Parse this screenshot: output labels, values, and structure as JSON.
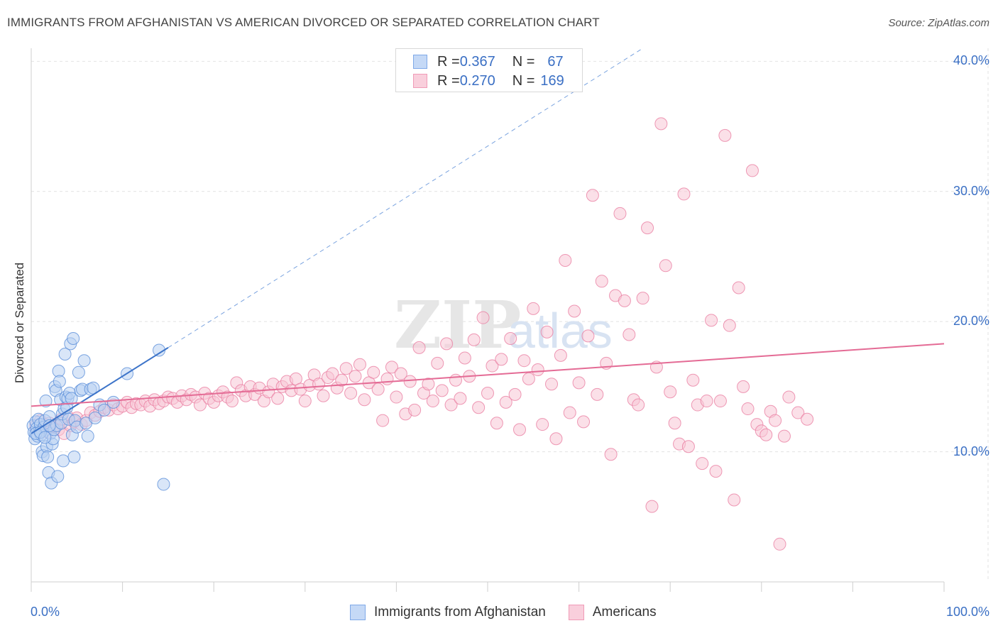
{
  "header": {
    "title": "IMMIGRANTS FROM AFGHANISTAN VS AMERICAN DIVORCED OR SEPARATED CORRELATION CHART",
    "source": "Source: ZipAtlas.com"
  },
  "watermark": "ZIPatlas",
  "legend_top": {
    "rows": [
      {
        "r_label": "R = ",
        "r_value": "0.367",
        "n_label": "N = ",
        "n_value": "67",
        "color": "#7fa9e8",
        "fill": "#c5d9f6"
      },
      {
        "r_label": "R = ",
        "r_value": "0.270",
        "n_label": "N = ",
        "n_value": "169",
        "color": "#f09bb7",
        "fill": "#f9cfdc"
      }
    ]
  },
  "chart_data": {
    "type": "scatter",
    "title": "IMMIGRANTS FROM AFGHANISTAN VS AMERICAN DIVORCED OR SEPARATED CORRELATION CHART",
    "xlabel": "",
    "ylabel": "Divorced or Separated",
    "xlim": [
      0,
      100
    ],
    "ylim": [
      0,
      41
    ],
    "x_tick_labels": [
      "0.0%",
      "100.0%"
    ],
    "y_ticks": [
      10,
      20,
      30,
      40
    ],
    "y_tick_labels": [
      "10.0%",
      "20.0%",
      "30.0%",
      "40.0%"
    ],
    "grid": true,
    "legend_position": "bottom",
    "series": [
      {
        "name": "Immigrants from Afghanistan",
        "color": "#5b8fd9",
        "fill": "#b9d1f3",
        "r": 0.367,
        "n": 67,
        "trend": {
          "x0": 0,
          "y0": 11.4,
          "x1": 15,
          "y1": 18.0,
          "dashed_to_x": 67,
          "dashed_to_y": 41
        },
        "points": [
          [
            0.2,
            12.0
          ],
          [
            0.3,
            11.5
          ],
          [
            0.4,
            11.0
          ],
          [
            0.5,
            12.3
          ],
          [
            0.6,
            11.8
          ],
          [
            0.7,
            11.2
          ],
          [
            0.8,
            12.5
          ],
          [
            0.9,
            11.6
          ],
          [
            1.0,
            12.1
          ],
          [
            1.1,
            11.3
          ],
          [
            1.2,
            10.0
          ],
          [
            1.3,
            9.7
          ],
          [
            1.4,
            11.9
          ],
          [
            1.5,
            12.4
          ],
          [
            1.6,
            13.9
          ],
          [
            1.7,
            10.4
          ],
          [
            1.8,
            9.6
          ],
          [
            1.9,
            8.4
          ],
          [
            2.0,
            12.7
          ],
          [
            2.1,
            11.4
          ],
          [
            2.2,
            7.6
          ],
          [
            2.3,
            10.6
          ],
          [
            2.4,
            11.0
          ],
          [
            2.5,
            11.7
          ],
          [
            2.6,
            15.0
          ],
          [
            2.7,
            14.7
          ],
          [
            2.8,
            12.0
          ],
          [
            2.9,
            8.1
          ],
          [
            3.0,
            16.2
          ],
          [
            3.1,
            15.4
          ],
          [
            3.2,
            14.0
          ],
          [
            3.3,
            12.2
          ],
          [
            3.4,
            12.9
          ],
          [
            3.5,
            9.3
          ],
          [
            3.6,
            13.3
          ],
          [
            3.7,
            17.5
          ],
          [
            3.8,
            14.2
          ],
          [
            3.9,
            13.4
          ],
          [
            4.0,
            14.1
          ],
          [
            4.1,
            12.5
          ],
          [
            4.2,
            14.5
          ],
          [
            4.3,
            18.3
          ],
          [
            4.4,
            14.1
          ],
          [
            4.5,
            11.3
          ],
          [
            4.6,
            18.7
          ],
          [
            4.7,
            9.6
          ],
          [
            4.8,
            12.4
          ],
          [
            5.0,
            11.9
          ],
          [
            5.2,
            16.1
          ],
          [
            5.4,
            14.7
          ],
          [
            5.6,
            14.8
          ],
          [
            5.8,
            17.0
          ],
          [
            6.0,
            12.2
          ],
          [
            6.2,
            11.2
          ],
          [
            6.5,
            14.8
          ],
          [
            6.8,
            14.9
          ],
          [
            7.0,
            12.6
          ],
          [
            7.5,
            13.6
          ],
          [
            8.0,
            13.2
          ],
          [
            9.0,
            13.8
          ],
          [
            10.5,
            16.0
          ],
          [
            14.0,
            17.8
          ],
          [
            14.5,
            7.5
          ],
          [
            0.5,
            11.4
          ],
          [
            1.0,
            11.5
          ],
          [
            1.5,
            11.1
          ],
          [
            2.0,
            12.0
          ]
        ]
      },
      {
        "name": "Americans",
        "color": "#ea7fa3",
        "fill": "#f7c6d6",
        "r": 0.27,
        "n": 169,
        "trend": {
          "x0": 0,
          "y0": 13.5,
          "x1": 100,
          "y1": 18.3
        },
        "points": [
          [
            0.5,
            12.0
          ],
          [
            0.8,
            11.6
          ],
          [
            1.0,
            12.4
          ],
          [
            1.2,
            11.8
          ],
          [
            1.5,
            12.1
          ],
          [
            1.8,
            11.5
          ],
          [
            2.0,
            12.2
          ],
          [
            2.3,
            11.9
          ],
          [
            2.6,
            12.0
          ],
          [
            3.0,
            11.7
          ],
          [
            3.3,
            12.5
          ],
          [
            3.6,
            11.4
          ],
          [
            4.0,
            12.7
          ],
          [
            4.3,
            12.0
          ],
          [
            4.7,
            12.3
          ],
          [
            5.0,
            12.6
          ],
          [
            5.5,
            12.1
          ],
          [
            6.0,
            12.4
          ],
          [
            6.5,
            13.0
          ],
          [
            7.0,
            12.8
          ],
          [
            7.5,
            13.1
          ],
          [
            8.0,
            13.4
          ],
          [
            8.5,
            13.2
          ],
          [
            9.0,
            13.6
          ],
          [
            9.5,
            13.3
          ],
          [
            10.0,
            13.5
          ],
          [
            10.5,
            13.8
          ],
          [
            11.0,
            13.4
          ],
          [
            11.5,
            13.7
          ],
          [
            12.0,
            13.6
          ],
          [
            12.5,
            13.9
          ],
          [
            13.0,
            13.5
          ],
          [
            13.5,
            14.0
          ],
          [
            14.0,
            13.7
          ],
          [
            14.5,
            13.9
          ],
          [
            15.0,
            14.2
          ],
          [
            15.5,
            14.1
          ],
          [
            16.0,
            13.8
          ],
          [
            16.5,
            14.3
          ],
          [
            17.0,
            14.0
          ],
          [
            17.5,
            14.4
          ],
          [
            18.0,
            14.2
          ],
          [
            18.5,
            13.6
          ],
          [
            19.0,
            14.5
          ],
          [
            19.5,
            14.1
          ],
          [
            20.0,
            13.8
          ],
          [
            20.5,
            14.3
          ],
          [
            21.0,
            14.6
          ],
          [
            21.5,
            14.2
          ],
          [
            22.0,
            13.9
          ],
          [
            22.5,
            15.3
          ],
          [
            23.0,
            14.7
          ],
          [
            23.5,
            14.3
          ],
          [
            24.0,
            15.0
          ],
          [
            24.5,
            14.4
          ],
          [
            25.0,
            14.9
          ],
          [
            25.5,
            13.9
          ],
          [
            26.0,
            14.6
          ],
          [
            26.5,
            15.2
          ],
          [
            27.0,
            14.1
          ],
          [
            27.5,
            15.0
          ],
          [
            28.0,
            15.4
          ],
          [
            28.5,
            14.7
          ],
          [
            29.0,
            15.6
          ],
          [
            29.5,
            14.8
          ],
          [
            30.0,
            13.9
          ],
          [
            30.5,
            15.1
          ],
          [
            31.0,
            15.9
          ],
          [
            31.5,
            15.2
          ],
          [
            32.0,
            14.3
          ],
          [
            32.5,
            15.7
          ],
          [
            33.0,
            16.0
          ],
          [
            33.5,
            14.9
          ],
          [
            34.0,
            15.5
          ],
          [
            34.5,
            16.4
          ],
          [
            35.0,
            14.5
          ],
          [
            35.5,
            15.8
          ],
          [
            36.0,
            16.7
          ],
          [
            36.5,
            14.0
          ],
          [
            37.0,
            15.3
          ],
          [
            37.5,
            16.1
          ],
          [
            38.0,
            14.8
          ],
          [
            38.5,
            12.4
          ],
          [
            39.0,
            15.6
          ],
          [
            39.5,
            16.5
          ],
          [
            40.0,
            14.2
          ],
          [
            40.5,
            16.0
          ],
          [
            41.0,
            12.9
          ],
          [
            41.5,
            15.4
          ],
          [
            42.0,
            13.2
          ],
          [
            42.5,
            18.0
          ],
          [
            43.0,
            14.5
          ],
          [
            43.5,
            15.2
          ],
          [
            44.0,
            13.9
          ],
          [
            44.5,
            16.8
          ],
          [
            45.0,
            14.7
          ],
          [
            45.5,
            18.3
          ],
          [
            46.0,
            13.6
          ],
          [
            46.5,
            15.5
          ],
          [
            47.0,
            14.1
          ],
          [
            47.5,
            17.2
          ],
          [
            48.0,
            15.8
          ],
          [
            48.5,
            18.6
          ],
          [
            49.0,
            13.4
          ],
          [
            49.5,
            20.3
          ],
          [
            50.0,
            14.5
          ],
          [
            50.5,
            16.6
          ],
          [
            51.0,
            12.2
          ],
          [
            51.5,
            17.1
          ],
          [
            52.0,
            13.8
          ],
          [
            52.5,
            18.7
          ],
          [
            53.0,
            14.4
          ],
          [
            53.5,
            11.7
          ],
          [
            54.0,
            17.0
          ],
          [
            54.5,
            15.6
          ],
          [
            55.0,
            21.0
          ],
          [
            55.5,
            16.3
          ],
          [
            56.0,
            12.1
          ],
          [
            56.5,
            19.2
          ],
          [
            57.0,
            15.2
          ],
          [
            57.5,
            11.0
          ],
          [
            58.0,
            17.4
          ],
          [
            58.5,
            24.7
          ],
          [
            59.0,
            13.0
          ],
          [
            59.5,
            20.8
          ],
          [
            60.0,
            15.3
          ],
          [
            60.5,
            12.3
          ],
          [
            61.0,
            18.9
          ],
          [
            61.5,
            29.7
          ],
          [
            62.0,
            14.4
          ],
          [
            62.5,
            23.1
          ],
          [
            63.0,
            16.8
          ],
          [
            63.5,
            9.8
          ],
          [
            64.0,
            22.0
          ],
          [
            64.5,
            28.3
          ],
          [
            65.0,
            21.6
          ],
          [
            65.5,
            19.0
          ],
          [
            66.0,
            14.0
          ],
          [
            66.5,
            13.6
          ],
          [
            67.0,
            21.8
          ],
          [
            67.5,
            27.2
          ],
          [
            68.0,
            5.8
          ],
          [
            68.5,
            16.5
          ],
          [
            69.0,
            35.2
          ],
          [
            69.5,
            24.3
          ],
          [
            70.0,
            14.6
          ],
          [
            70.5,
            12.2
          ],
          [
            71.0,
            10.6
          ],
          [
            71.5,
            29.8
          ],
          [
            72.0,
            10.4
          ],
          [
            72.5,
            15.5
          ],
          [
            73.0,
            13.6
          ],
          [
            73.5,
            9.1
          ],
          [
            74.0,
            13.9
          ],
          [
            74.5,
            20.1
          ],
          [
            75.0,
            8.5
          ],
          [
            75.5,
            13.9
          ],
          [
            76.0,
            34.3
          ],
          [
            76.5,
            19.7
          ],
          [
            77.0,
            6.3
          ],
          [
            77.5,
            22.6
          ],
          [
            78.0,
            15.0
          ],
          [
            78.5,
            13.3
          ],
          [
            79.0,
            31.6
          ],
          [
            79.5,
            12.1
          ],
          [
            80.0,
            11.6
          ],
          [
            80.5,
            11.3
          ],
          [
            81.0,
            13.1
          ],
          [
            81.5,
            12.4
          ],
          [
            82.0,
            2.9
          ],
          [
            82.5,
            11.2
          ],
          [
            83.0,
            14.2
          ],
          [
            84.0,
            13.0
          ],
          [
            85.0,
            12.5
          ]
        ]
      }
    ]
  },
  "bottom_legend": {
    "items": [
      {
        "label": "Immigrants from Afghanistan",
        "color": "#7fa9e8",
        "fill": "#c5d9f6"
      },
      {
        "label": "Americans",
        "color": "#f09bb7",
        "fill": "#f9cfdc"
      }
    ]
  }
}
